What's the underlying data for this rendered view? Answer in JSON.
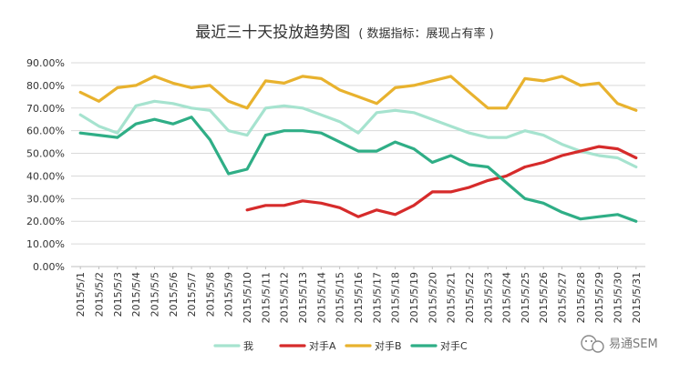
{
  "chart_data": {
    "type": "line",
    "title": "最近三十天投放趋势图",
    "subtitle": "( 数据指标：展现占有率 )",
    "xlabel": "",
    "ylabel": "",
    "ylim": [
      0,
      0.9
    ],
    "y_ticks": [
      "0.00%",
      "10.00%",
      "20.00%",
      "30.00%",
      "40.00%",
      "50.00%",
      "60.00%",
      "70.00%",
      "80.00%",
      "90.00%"
    ],
    "grid": true,
    "legend_position": "bottom",
    "categories": [
      "2015/5/1",
      "2015/5/2",
      "2015/5/3",
      "2015/5/4",
      "2015/5/5",
      "2015/5/6",
      "2015/5/7",
      "2015/5/8",
      "2015/5/9",
      "2015/5/10",
      "2015/5/11",
      "2015/5/12",
      "2015/5/13",
      "2015/5/14",
      "2015/5/15",
      "2015/5/16",
      "2015/5/17",
      "2015/5/18",
      "2015/5/19",
      "2015/5/20",
      "2015/5/21",
      "2015/5/22",
      "2015/5/23",
      "2015/5/24",
      "2015/5/25",
      "2015/5/26",
      "2015/5/27",
      "2015/5/28",
      "2015/5/29",
      "2015/5/30",
      "2015/5/31"
    ],
    "series": [
      {
        "name": "我",
        "color": "#a6e3cf",
        "values": [
          0.67,
          0.62,
          0.59,
          0.71,
          0.73,
          0.72,
          0.7,
          0.69,
          0.6,
          0.58,
          0.7,
          0.71,
          0.7,
          0.67,
          0.64,
          0.59,
          0.68,
          0.69,
          0.68,
          0.65,
          0.62,
          0.59,
          0.57,
          0.57,
          0.6,
          0.58,
          0.54,
          0.51,
          0.49,
          0.48,
          0.44
        ]
      },
      {
        "name": "对手A",
        "color": "#d62b2b",
        "values": [
          null,
          null,
          null,
          null,
          null,
          null,
          null,
          null,
          null,
          0.25,
          0.27,
          0.27,
          0.29,
          0.28,
          0.26,
          0.22,
          0.25,
          0.23,
          0.27,
          0.33,
          0.33,
          0.35,
          0.38,
          0.4,
          0.44,
          0.46,
          0.49,
          0.51,
          0.53,
          0.52,
          0.48
        ]
      },
      {
        "name": "对手B",
        "color": "#e8b22e",
        "values": [
          0.77,
          0.73,
          0.79,
          0.8,
          0.84,
          0.81,
          0.79,
          0.8,
          0.73,
          0.7,
          0.82,
          0.81,
          0.84,
          0.83,
          0.78,
          0.75,
          0.72,
          0.79,
          0.8,
          0.82,
          0.84,
          0.77,
          0.7,
          0.7,
          0.83,
          0.82,
          0.84,
          0.8,
          0.81,
          0.72,
          0.69
        ]
      },
      {
        "name": "对手C",
        "color": "#2fae86",
        "values": [
          0.59,
          0.58,
          0.57,
          0.63,
          0.65,
          0.63,
          0.66,
          0.56,
          0.41,
          0.43,
          0.58,
          0.6,
          0.6,
          0.59,
          0.55,
          0.51,
          0.51,
          0.55,
          0.52,
          0.46,
          0.49,
          0.45,
          0.44,
          0.37,
          0.3,
          0.28,
          0.24,
          0.21,
          0.22,
          0.23,
          0.2
        ]
      }
    ]
  },
  "watermark": {
    "text": "易通SEM",
    "icon": "wechat-icon"
  }
}
